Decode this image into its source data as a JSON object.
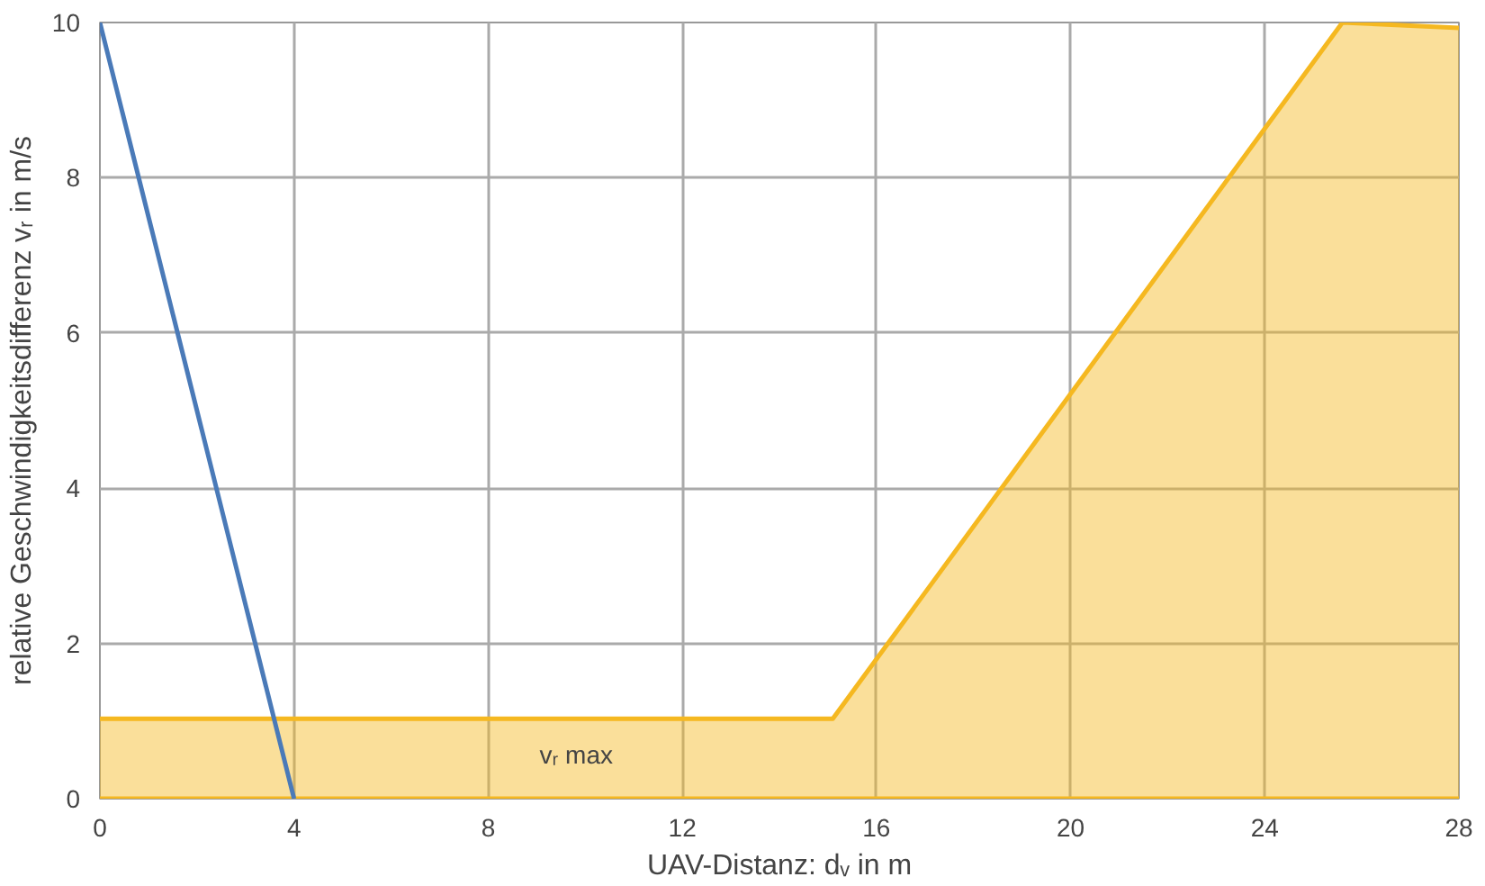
{
  "chart_data": {
    "type": "line",
    "xlabel": "UAV-Distanz: dᵥ in m",
    "ylabel": "relative Geschwindigkeitsdifferenz vᵣ in m/s",
    "xlim": [
      0,
      28
    ],
    "ylim": [
      0,
      10
    ],
    "xticks": [
      0,
      4,
      8,
      12,
      16,
      20,
      24,
      28
    ],
    "yticks": [
      0,
      2,
      4,
      6,
      8,
      10
    ],
    "grid": true,
    "series": [
      {
        "type": "area",
        "name": "vᵣ max",
        "color": "#f5b820",
        "x": [
          0,
          15.1,
          25.6,
          28
        ],
        "values": [
          1.03,
          1.03,
          10,
          9.93
        ]
      },
      {
        "color": "#4a7ab8",
        "x": [
          0,
          4
        ],
        "values": [
          10,
          0
        ]
      }
    ]
  }
}
